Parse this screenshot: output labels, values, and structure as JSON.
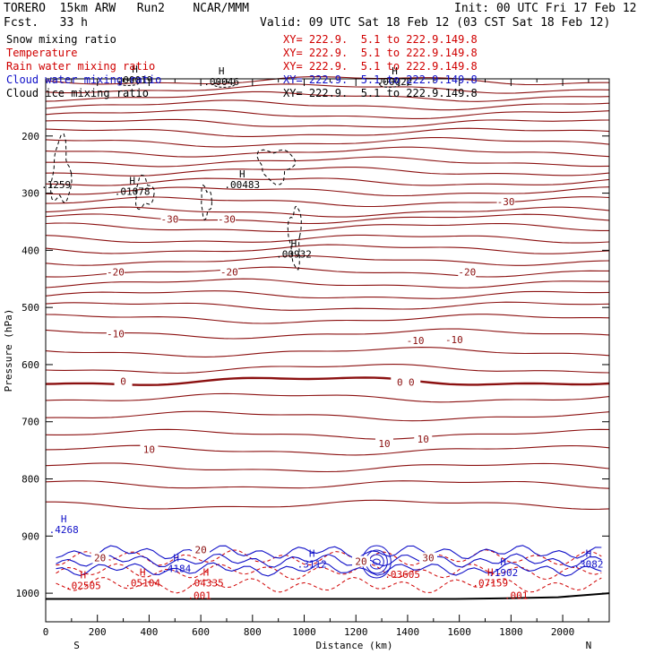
{
  "header": {
    "model": "TORERO  15km ARW   Run2    NCAR/MMM",
    "init": "Init: 00 UTC Fri 17 Feb 12",
    "fcst": "Fcst.   33 h",
    "valid": "Valid: 09 UTC Sat 18 Feb 12 (03 CST Sat 18 Feb 12)"
  },
  "legend": [
    {
      "name": "Snow mixing ratio",
      "xy": "XY= 222.9.  5.1 to 222.9.149.8",
      "color": "#000000",
      "xy_color": "#d00000"
    },
    {
      "name": "Temperature",
      "xy": "XY= 222.9.  5.1 to 222.9.149.8",
      "color": "#d00000",
      "xy_color": "#d00000"
    },
    {
      "name": "Rain water mixing ratio",
      "xy": "XY= 222.9.  5.1 to 222.9.149.8",
      "color": "#d00000",
      "xy_color": "#d00000"
    },
    {
      "name": "Cloud water mixing ratio",
      "xy": "XY= 222.9.  5.1 to 222.9.149.8",
      "color": "#1010c8",
      "xy_color": "#1010c8"
    },
    {
      "name": "Cloud ice mixing ratio",
      "xy": "XY= 222.9.  5.1 to 222.9.149.8",
      "color": "#000000",
      "xy_color": "#000000"
    }
  ],
  "chart_data": {
    "type": "contour-cross-section",
    "xlabel": "Distance (km)",
    "ylabel": "Pressure (hPa)",
    "xlim": [
      0,
      2180
    ],
    "ylim": [
      1050,
      100
    ],
    "x_ticks": [
      0,
      200,
      400,
      600,
      800,
      1000,
      1200,
      1400,
      1600,
      1800,
      2000
    ],
    "y_ticks": [
      200,
      300,
      400,
      500,
      600,
      700,
      800,
      900,
      1000
    ],
    "start_label": "S",
    "end_label": "N",
    "colors": {
      "temperature": "#8b1010",
      "rain": "#d00000",
      "cloud_water": "#1010c8",
      "ice": "#000000",
      "ground": "#000000"
    },
    "temperature_levels": [
      {
        "value": -60,
        "pressure": 103
      },
      {
        "value": -58,
        "pressure": 117
      },
      {
        "value": -56,
        "pressure": 131
      },
      {
        "value": -54,
        "pressure": 146
      },
      {
        "value": -52,
        "pressure": 162
      },
      {
        "value": -50,
        "pressure": 178
      },
      {
        "value": -48,
        "pressure": 194
      },
      {
        "value": -46,
        "pressure": 211
      },
      {
        "value": -44,
        "pressure": 228
      },
      {
        "value": -42,
        "pressure": 245
      },
      {
        "value": -40,
        "pressure": 262
      },
      {
        "value": -38,
        "pressure": 280
      },
      {
        "value": -36,
        "pressure": 297
      },
      {
        "value": -34,
        "pressure": 315
      },
      {
        "value": -32,
        "pressure": 333
      },
      {
        "value": -30,
        "pressure": 345
      },
      {
        "value": -28,
        "pressure": 360
      },
      {
        "value": -26,
        "pressure": 380
      },
      {
        "value": -24,
        "pressure": 398
      },
      {
        "value": -22,
        "pressure": 418
      },
      {
        "value": -20,
        "pressure": 438
      },
      {
        "value": -18,
        "pressure": 458
      },
      {
        "value": -16,
        "pressure": 478
      },
      {
        "value": -14,
        "pressure": 498
      },
      {
        "value": -12,
        "pressure": 520
      },
      {
        "value": -10,
        "pressure": 546
      },
      {
        "value": -6,
        "pressure": 578
      },
      {
        "value": -2,
        "pressure": 607
      },
      {
        "value": 0,
        "pressure": 629
      },
      {
        "value": 2,
        "pressure": 658
      },
      {
        "value": 4,
        "pressure": 690
      },
      {
        "value": 6,
        "pressure": 722
      },
      {
        "value": 8,
        "pressure": 750
      },
      {
        "value": 10,
        "pressure": 780
      },
      {
        "value": 12,
        "pressure": 810
      },
      {
        "value": 14,
        "pressure": 845
      }
    ],
    "temperature_labels": [
      {
        "text": "-30",
        "x": 480,
        "p": 345
      },
      {
        "text": "-30",
        "x": 700,
        "p": 345
      },
      {
        "text": "-30",
        "x": 1780,
        "p": 315
      },
      {
        "text": "-20",
        "x": 270,
        "p": 438
      },
      {
        "text": "-20",
        "x": 710,
        "p": 438
      },
      {
        "text": "-20",
        "x": 1630,
        "p": 438
      },
      {
        "text": "-10",
        "x": 270,
        "p": 546
      },
      {
        "text": "-10",
        "x": 1430,
        "p": 558
      },
      {
        "text": "-10",
        "x": 1580,
        "p": 556
      },
      {
        "text": "0",
        "x": 300,
        "p": 629
      },
      {
        "text": "0",
        "x": 1370,
        "p": 631
      },
      {
        "text": "0",
        "x": 1415,
        "p": 631
      },
      {
        "text": "10",
        "x": 400,
        "p": 748
      },
      {
        "text": "10",
        "x": 1310,
        "p": 738
      },
      {
        "text": "10",
        "x": 1460,
        "p": 730
      },
      {
        "text": "20",
        "x": 600,
        "p": 924
      },
      {
        "text": "20",
        "x": 210,
        "p": 938
      },
      {
        "text": "20",
        "x": 1220,
        "p": 944
      },
      {
        "text": "30",
        "x": 1480,
        "p": 938
      }
    ],
    "maxima": [
      {
        "text": "H",
        "value": ".00019",
        "x": 345,
        "p": 105,
        "color": "#000000"
      },
      {
        "text": "H",
        "value": ".00046",
        "x": 680,
        "p": 108,
        "color": "#000000"
      },
      {
        "text": "H",
        "value": ".00022",
        "x": 1350,
        "p": 108,
        "color": "#000000"
      },
      {
        "text": "",
        "value": ".1259",
        "x": 40,
        "p": 288,
        "color": "#000000"
      },
      {
        "text": "H",
        "value": ".01078",
        "x": 335,
        "p": 300,
        "color": "#000000"
      },
      {
        "text": "H",
        "value": ".00483",
        "x": 760,
        "p": 288,
        "color": "#000000"
      },
      {
        "text": "H",
        "value": ".00932",
        "x": 960,
        "p": 410,
        "color": "#000000"
      },
      {
        "text": "H",
        "value": ".4268",
        "x": 70,
        "p": 892,
        "color": "#1010c8"
      },
      {
        "text": "H",
        "value": ".4184",
        "x": 505,
        "p": 960,
        "color": "#1010c8"
      },
      {
        "text": "H",
        "value": ".3112",
        "x": 1030,
        "p": 952,
        "color": "#1010c8"
      },
      {
        "text": "H",
        "value": ".1902",
        "x": 1770,
        "p": 967,
        "color": "#1010c8"
      },
      {
        "text": "H",
        "value": ".3082",
        "x": 2100,
        "p": 952,
        "color": "#1010c8"
      },
      {
        "text": "H",
        "value": ".02505",
        "x": 145,
        "p": 990,
        "color": "#d00000"
      },
      {
        "text": "H",
        "value": ".05104",
        "x": 375,
        "p": 985,
        "color": "#d00000"
      },
      {
        "text": "H",
        "value": ".04335",
        "x": 620,
        "p": 985,
        "color": "#d00000"
      },
      {
        "text": "",
        "value": ".03605",
        "x": 1380,
        "p": 970,
        "color": "#d00000"
      },
      {
        "text": "H",
        "value": ".07159",
        "x": 1720,
        "p": 985,
        "color": "#d00000"
      },
      {
        "text": "",
        "value": ".001",
        "x": 595,
        "p": 1007,
        "color": "#d00000"
      },
      {
        "text": "",
        "value": ".001",
        "x": 1820,
        "p": 1007,
        "color": "#d00000"
      }
    ],
    "snow_contours": [
      {
        "cx": 60,
        "cy": 265,
        "rx": 35,
        "ry": 55
      },
      {
        "cx": 380,
        "cy": 300,
        "rx": 35,
        "ry": 25
      },
      {
        "cx": 620,
        "cy": 315,
        "rx": 20,
        "ry": 25
      },
      {
        "cx": 890,
        "cy": 250,
        "rx": 65,
        "ry": 28
      },
      {
        "cx": 965,
        "cy": 375,
        "rx": 22,
        "ry": 52
      }
    ],
    "ice_contours": [
      {
        "cx": 320,
        "cy": 107,
        "rx": 40,
        "ry": 5
      },
      {
        "cx": 690,
        "cy": 110,
        "rx": 40,
        "ry": 5
      },
      {
        "cx": 1330,
        "cy": 110,
        "rx": 40,
        "ry": 5
      }
    ],
    "cloud_layer": {
      "x_start": 40,
      "x_end": 2150,
      "p_top": 928,
      "p_bottom": 975
    },
    "rain_layer": {
      "x_start": 40,
      "x_end": 2150,
      "p_top": 920,
      "p_bottom": 1005
    },
    "ground_pressure": [
      1010,
      1010,
      1010,
      1010,
      1010,
      1010,
      1010,
      1010,
      1010,
      1009,
      1007,
      1000
    ]
  }
}
